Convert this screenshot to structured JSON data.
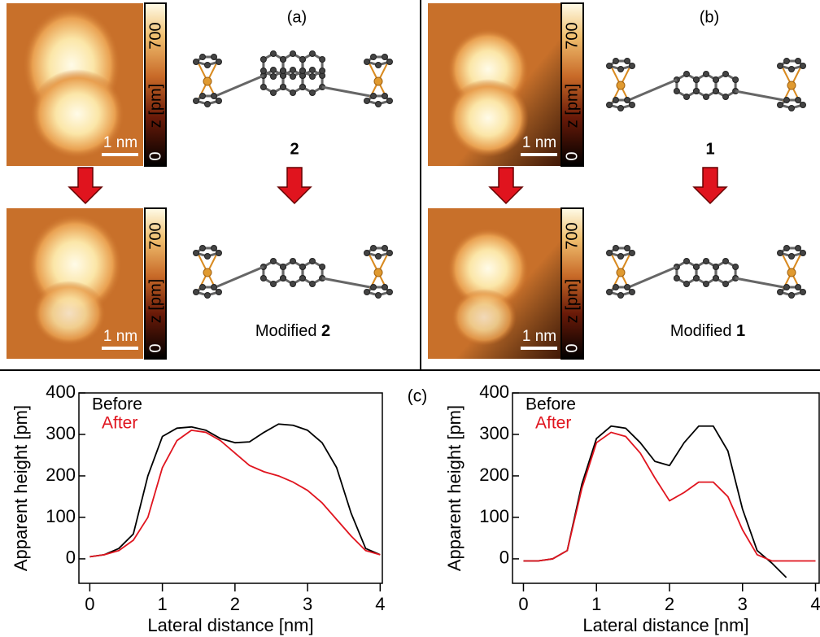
{
  "panels": {
    "a": {
      "label": "(a)",
      "molecule": "2",
      "modified_prefix": "Modified"
    },
    "b": {
      "label": "(b)",
      "molecule": "1",
      "modified_prefix": "Modified"
    },
    "c": {
      "label": "(c)"
    }
  },
  "colorbar": {
    "min": 0,
    "title": "z [pm]",
    "max": 700
  },
  "scale_bar": "1 nm",
  "chart_data": [
    {
      "type": "line",
      "xlabel": "Lateral distance [nm]",
      "ylabel": "Apparent height [pm]",
      "x": [
        0,
        0.2,
        0.4,
        0.6,
        0.8,
        1.0,
        1.2,
        1.4,
        1.6,
        1.8,
        2.0,
        2.2,
        2.4,
        2.6,
        2.8,
        3.0,
        3.2,
        3.4,
        3.6,
        3.8,
        4.0
      ],
      "series": [
        {
          "name": "Before",
          "color": "#000000",
          "values": [
            5,
            10,
            25,
            60,
            200,
            295,
            315,
            318,
            310,
            290,
            280,
            282,
            305,
            325,
            322,
            310,
            280,
            220,
            110,
            25,
            10
          ]
        },
        {
          "name": "After",
          "color": "#e0141e",
          "values": [
            5,
            10,
            20,
            45,
            100,
            220,
            285,
            310,
            305,
            285,
            255,
            225,
            210,
            200,
            185,
            165,
            135,
            95,
            55,
            20,
            10
          ]
        }
      ],
      "xlim": [
        -0.15,
        4.03
      ],
      "ylim": [
        -59,
        400
      ],
      "xticks": [
        0,
        1,
        2,
        3,
        4
      ],
      "yticks": [
        0,
        100,
        200,
        300,
        400
      ]
    },
    {
      "type": "line",
      "xlabel": "Lateral distance [nm]",
      "ylabel": "Apparent height [pm]",
      "x": [
        0,
        0.2,
        0.4,
        0.6,
        0.8,
        1.0,
        1.2,
        1.4,
        1.6,
        1.8,
        2.0,
        2.2,
        2.4,
        2.6,
        2.8,
        3.0,
        3.2,
        3.4,
        3.6,
        3.8,
        4.0
      ],
      "series": [
        {
          "name": "Before",
          "color": "#000000",
          "values": [
            -5,
            -5,
            0,
            20,
            180,
            290,
            320,
            315,
            280,
            235,
            225,
            280,
            320,
            320,
            260,
            120,
            20,
            -10,
            -45,
            null,
            null
          ]
        },
        {
          "name": "After",
          "color": "#e0141e",
          "values": [
            -5,
            -5,
            0,
            20,
            170,
            280,
            305,
            295,
            255,
            195,
            140,
            160,
            185,
            185,
            150,
            70,
            10,
            -5,
            -5,
            -5,
            -5
          ]
        }
      ],
      "xlim": [
        -0.15,
        4.05
      ],
      "ylim": [
        -59,
        400
      ],
      "xticks": [
        0,
        1,
        2,
        3,
        4
      ],
      "yticks": [
        0,
        100,
        200,
        300,
        400
      ]
    }
  ]
}
